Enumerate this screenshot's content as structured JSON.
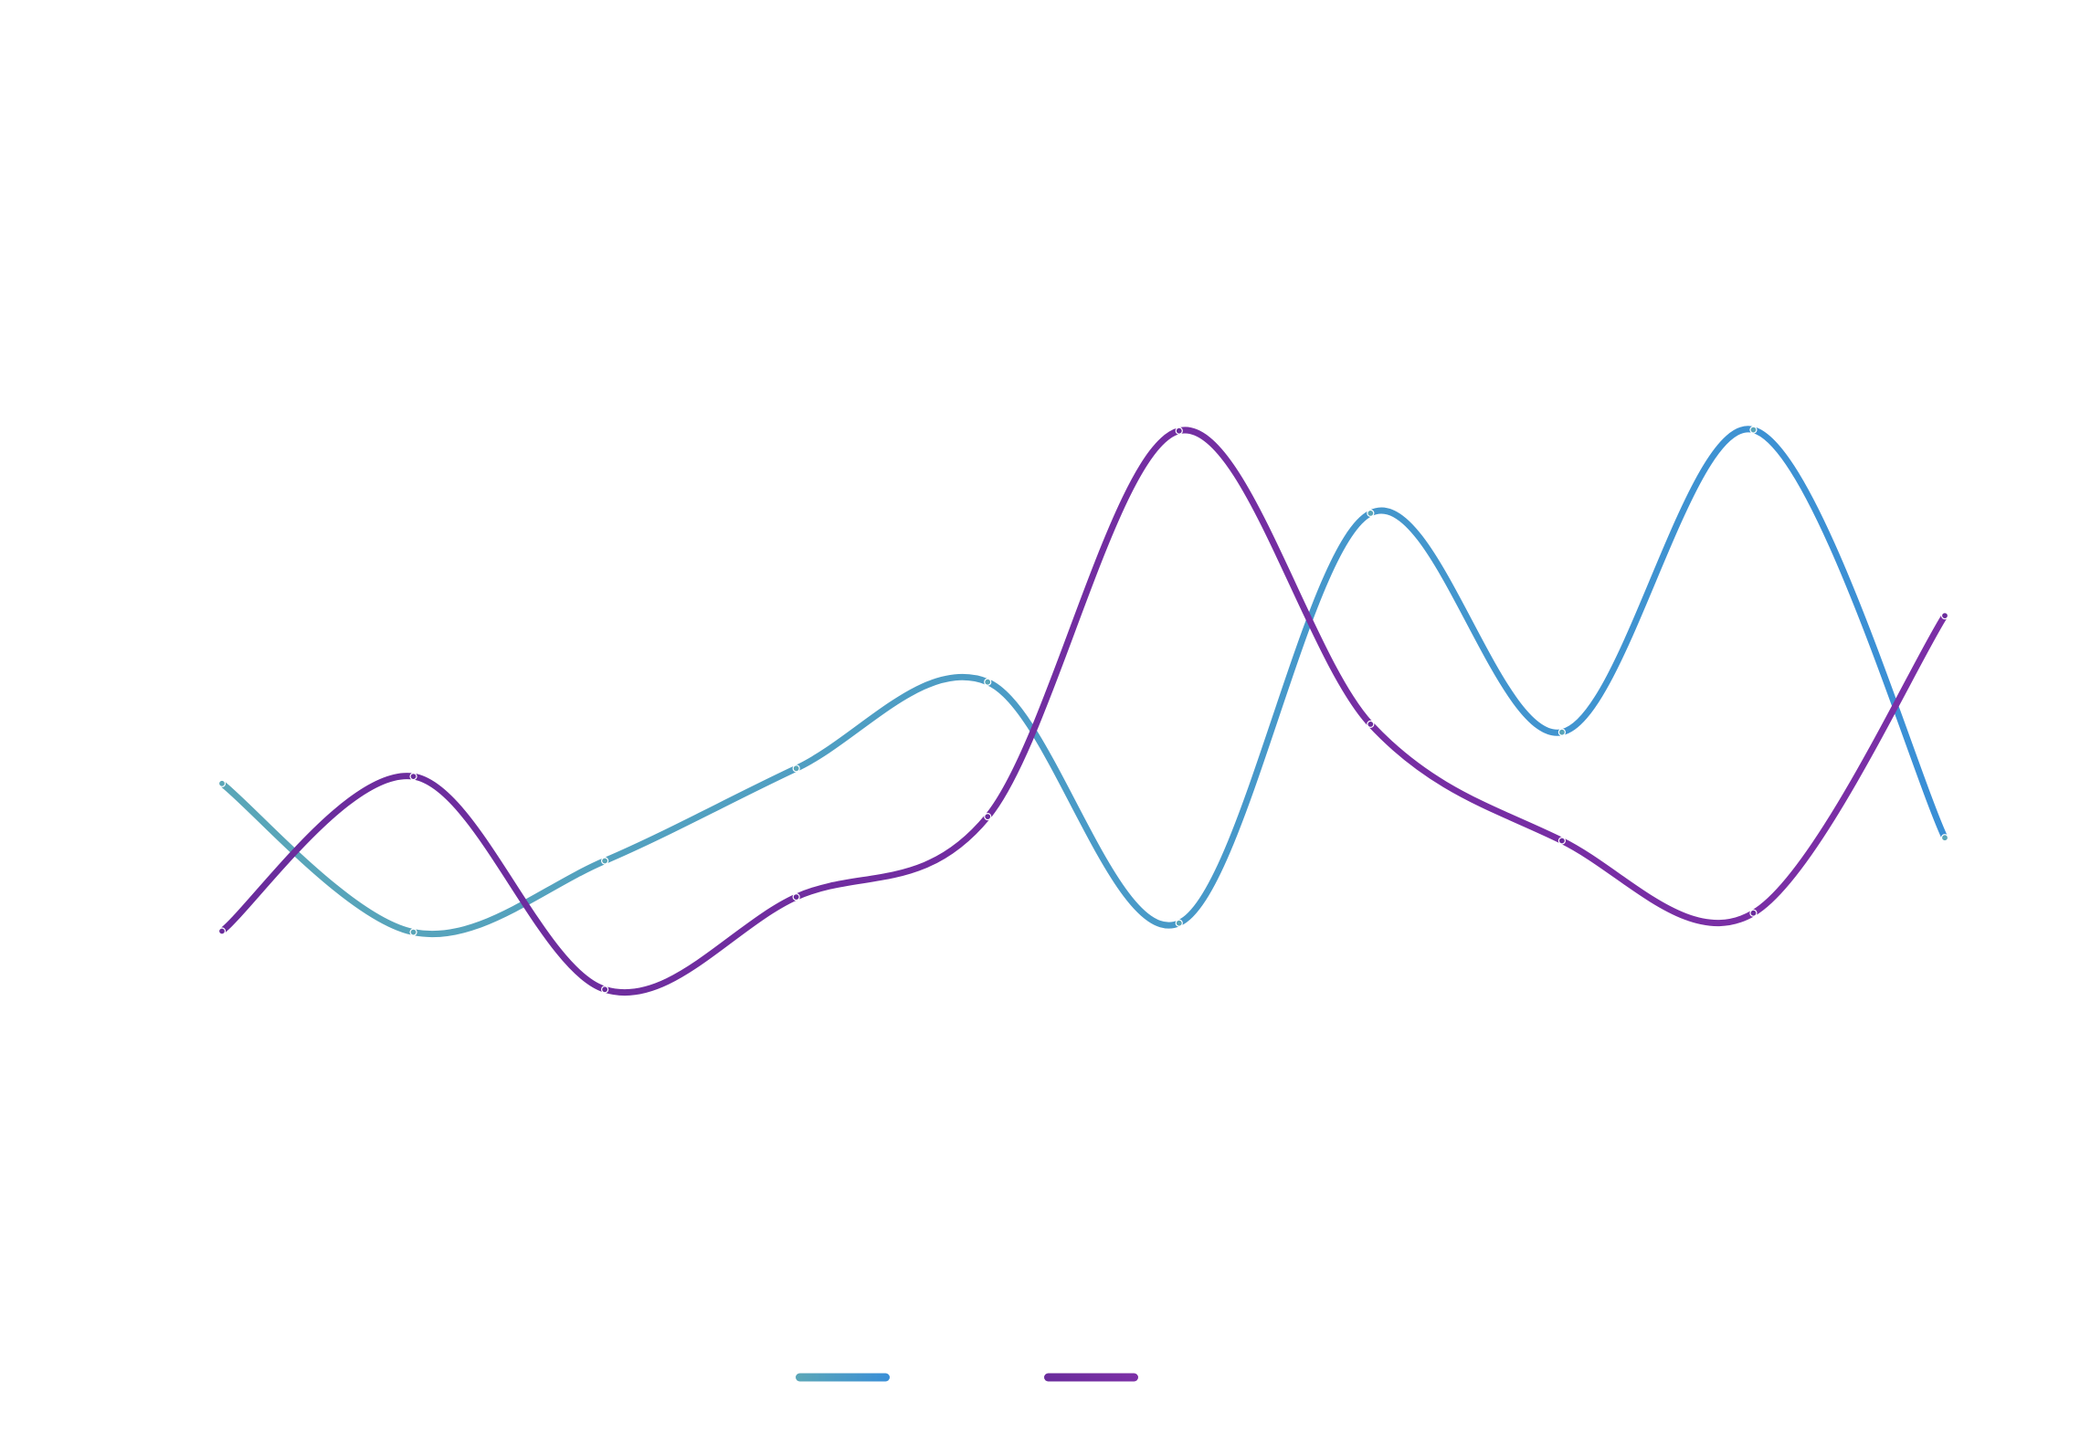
{
  "chart_data": {
    "type": "line",
    "curve": "smooth",
    "x": [
      0,
      1,
      2,
      3,
      4,
      5,
      6,
      7,
      8,
      9
    ],
    "series": [
      {
        "values": [
          40.2,
          25.4,
          32.5,
          41.7,
          50.3,
          26.3,
          67.1,
          45.3,
          75.4,
          34.8
        ],
        "colors": [
          "#5aa6b8",
          "#3a8fd6"
        ]
      },
      {
        "values": [
          25.5,
          40.9,
          19.7,
          28.9,
          36.9,
          75.3,
          46.1,
          34.5,
          27.3,
          56.9
        ],
        "colors": [
          "#6a2c9c",
          "#7b2fa6"
        ]
      }
    ],
    "ylim": [
      0,
      100
    ],
    "grid": false,
    "legend": "bottom-center"
  }
}
